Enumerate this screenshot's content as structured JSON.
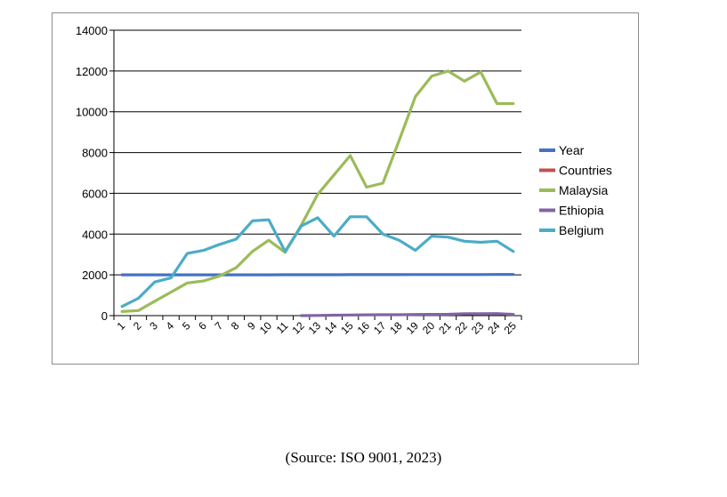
{
  "chart_data": {
    "type": "line",
    "x": [
      "1",
      "2",
      "3",
      "4",
      "5",
      "6",
      "7",
      "8",
      "9",
      "10",
      "11",
      "12",
      "13",
      "14",
      "15",
      "16",
      "17",
      "18",
      "19",
      "20",
      "21",
      "22",
      "23",
      "24",
      "25"
    ],
    "ylim": [
      0,
      14000
    ],
    "yticks": [
      0,
      2000,
      4000,
      6000,
      8000,
      10000,
      12000,
      14000
    ],
    "grid": true,
    "legend_position": "right",
    "series": [
      {
        "name": "Year",
        "color": "#4472C4",
        "values": [
          2000,
          2000,
          2000,
          2000,
          2000,
          2000,
          2001,
          2002,
          2003,
          2004,
          2005,
          2006,
          2007,
          2008,
          2009,
          2010,
          2011,
          2012,
          2013,
          2014,
          2015,
          2016,
          2017,
          2018,
          2019
        ]
      },
      {
        "name": "Countries",
        "color": "#C0504D",
        "values": [
          null,
          null,
          null,
          null,
          null,
          null,
          null,
          null,
          null,
          null,
          null,
          1,
          null,
          null,
          null,
          null,
          null,
          null,
          null,
          null,
          null,
          null,
          null,
          null,
          null
        ]
      },
      {
        "name": "Malaysia",
        "color": "#9BBB59",
        "values": [
          200,
          250,
          700,
          1150,
          1600,
          1700,
          1950,
          2350,
          3150,
          3700,
          3100,
          4450,
          5950,
          6900,
          7850,
          6300,
          6500,
          8600,
          10750,
          11750,
          12000,
          11500,
          11950,
          10400,
          10400
        ]
      },
      {
        "name": "Ethiopia",
        "color": "#8064A2",
        "values": [
          null,
          null,
          null,
          null,
          null,
          null,
          null,
          null,
          null,
          null,
          null,
          0,
          10,
          20,
          30,
          40,
          45,
          45,
          55,
          60,
          65,
          90,
          95,
          100,
          60
        ]
      },
      {
        "name": "Belgium",
        "color": "#4BACC6",
        "values": [
          450,
          850,
          1650,
          1850,
          3050,
          3200,
          3500,
          3750,
          4650,
          4700,
          3150,
          4400,
          4800,
          3900,
          4850,
          4850,
          4000,
          3700,
          3200,
          3900,
          3850,
          3650,
          3600,
          3650,
          3150
        ]
      }
    ]
  },
  "caption": "(Source: ISO 9001, 2023)"
}
